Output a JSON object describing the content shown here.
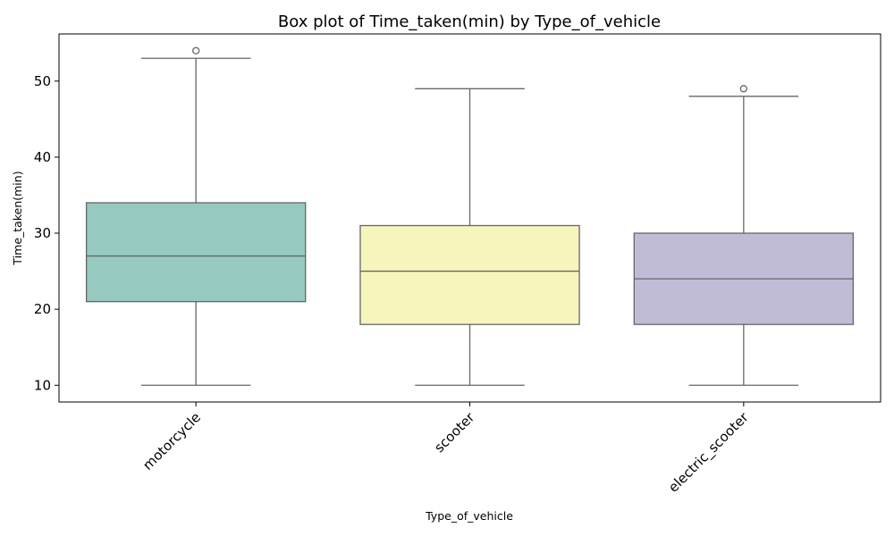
{
  "chart_data": {
    "type": "box",
    "title": "Box plot of Time_taken(min) by Type_of_vehicle",
    "xlabel": "Type_of_vehicle",
    "ylabel": "Time_taken(min)",
    "ylim": [
      7.8,
      56.2
    ],
    "yticks": [
      10,
      20,
      30,
      40,
      50
    ],
    "grid": false,
    "legend": "none",
    "categories": [
      "motorcycle",
      "scooter",
      "electric_scooter"
    ],
    "boxes": [
      {
        "category": "motorcycle",
        "whisker_low": 10,
        "q1": 21,
        "median": 27,
        "q3": 34,
        "whisker_high": 53,
        "outliers": [
          54
        ],
        "color": "#96cac1"
      },
      {
        "category": "scooter",
        "whisker_low": 10,
        "q1": 18,
        "median": 25,
        "q3": 31,
        "whisker_high": 49,
        "outliers": [],
        "color": "#f6f6bc"
      },
      {
        "category": "electric_scooter",
        "whisker_low": 10,
        "q1": 18,
        "median": 24,
        "q3": 30,
        "whisker_high": 48,
        "outliers": [
          49
        ],
        "color": "#c0bcd7"
      }
    ],
    "line_color": "#666666"
  }
}
